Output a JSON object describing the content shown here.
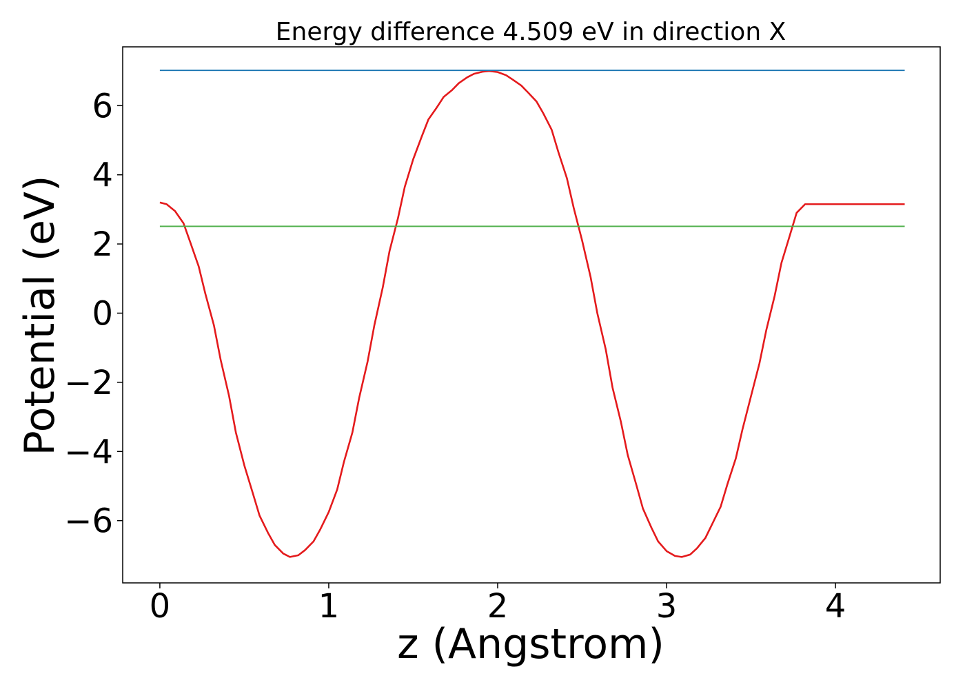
{
  "chart_data": {
    "type": "line",
    "title": "Energy difference 4.509 eV in direction X",
    "xlabel": "z (Angstrom)",
    "ylabel": "Potential (eV)",
    "xlim": [
      -0.22,
      4.62
    ],
    "ylim": [
      -7.8,
      7.7
    ],
    "grid": false,
    "x_ticks": [
      {
        "value": 0,
        "label": "0"
      },
      {
        "value": 1,
        "label": "1"
      },
      {
        "value": 2,
        "label": "2"
      },
      {
        "value": 3,
        "label": "3"
      },
      {
        "value": 4,
        "label": "4"
      }
    ],
    "y_ticks": [
      {
        "value": -6,
        "label": "−6"
      },
      {
        "value": -4,
        "label": "−4"
      },
      {
        "value": -2,
        "label": "−2"
      },
      {
        "value": 0,
        "label": "0"
      },
      {
        "value": 2,
        "label": "2"
      },
      {
        "value": 4,
        "label": "4"
      },
      {
        "value": 6,
        "label": "6"
      }
    ],
    "series": [
      {
        "color": "#e41a1c",
        "x": [
          0.0,
          0.04,
          0.09,
          0.14,
          0.18,
          0.23,
          0.27,
          0.32,
          0.36,
          0.41,
          0.45,
          0.5,
          0.55,
          0.59,
          0.64,
          0.68,
          0.73,
          0.77,
          0.82,
          0.86,
          0.91,
          0.95,
          1.0,
          1.05,
          1.09,
          1.14,
          1.18,
          1.23,
          1.27,
          1.32,
          1.36,
          1.41,
          1.45,
          1.5,
          1.55,
          1.59,
          1.64,
          1.68,
          1.73,
          1.77,
          1.82,
          1.86,
          1.91,
          1.95,
          2.0,
          2.05,
          2.09,
          2.14,
          2.18,
          2.23,
          2.27,
          2.32,
          2.36,
          2.41,
          2.45,
          2.5,
          2.55,
          2.59,
          2.64,
          2.68,
          2.73,
          2.77,
          2.82,
          2.86,
          2.91,
          2.95,
          3.0,
          3.05,
          3.09,
          3.14,
          3.18,
          3.23,
          3.27,
          3.32,
          3.36,
          3.41,
          3.45,
          3.5,
          3.55,
          3.59,
          3.64,
          3.68,
          3.73,
          3.77,
          3.82,
          3.86,
          3.91,
          3.95,
          4.0,
          4.05,
          4.09,
          4.14,
          4.18,
          4.23,
          4.27,
          4.32,
          4.36,
          4.41
        ],
        "y": [
          3.2,
          3.15,
          2.95,
          2.6,
          2.05,
          1.35,
          0.55,
          -0.35,
          -1.35,
          -2.4,
          -3.45,
          -4.4,
          -5.2,
          -5.85,
          -6.35,
          -6.7,
          -6.95,
          -7.05,
          -7.0,
          -6.85,
          -6.6,
          -6.25,
          -5.75,
          -5.1,
          -4.3,
          -3.45,
          -2.45,
          -1.4,
          -0.35,
          0.75,
          1.8,
          2.75,
          3.65,
          4.45,
          5.1,
          5.6,
          5.95,
          6.25,
          6.45,
          6.65,
          6.82,
          6.92,
          6.98,
          7.0,
          6.97,
          6.88,
          6.75,
          6.58,
          6.38,
          6.12,
          5.78,
          5.3,
          4.65,
          3.9,
          3.05,
          2.1,
          1.05,
          0.0,
          -1.05,
          -2.15,
          -3.15,
          -4.1,
          -4.95,
          -5.65,
          -6.2,
          -6.6,
          -6.88,
          -7.02,
          -7.05,
          -6.98,
          -6.8,
          -6.5,
          -6.1,
          -5.6,
          -4.95,
          -4.2,
          -3.35,
          -2.4,
          -1.45,
          -0.5,
          0.5,
          1.45,
          2.25,
          2.9,
          3.15,
          3.15,
          3.15,
          3.15,
          3.15,
          3.15,
          3.15,
          3.15,
          3.15,
          3.15,
          3.15,
          3.15,
          3.15,
          3.15
        ]
      },
      {
        "color": "#1f78b4",
        "x": [
          0.0,
          4.41
        ],
        "y": [
          7.02,
          7.02
        ]
      },
      {
        "color": "#4daf4a",
        "x": [
          0.0,
          4.41
        ],
        "y": [
          2.51,
          2.51
        ]
      }
    ]
  }
}
